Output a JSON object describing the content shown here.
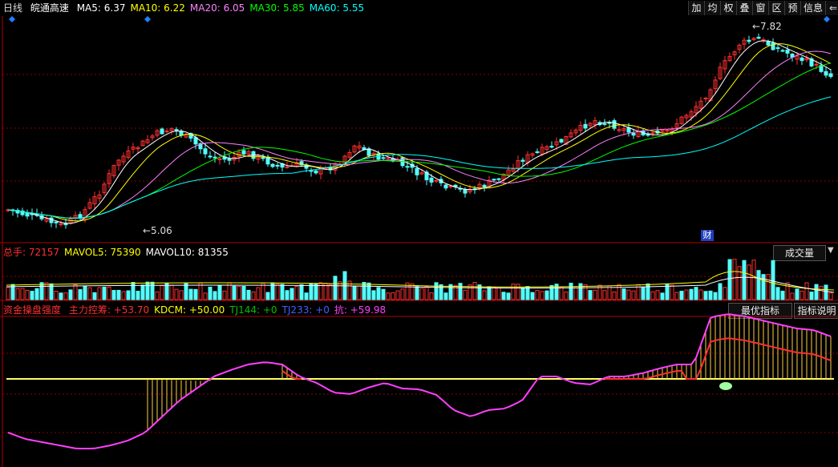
{
  "header": {
    "period": "日线",
    "stock_name": "皖通高速",
    "ma": [
      {
        "label": "MA5:",
        "value": "6.37",
        "color": "#ffffff"
      },
      {
        "label": "MA10:",
        "value": "6.22",
        "color": "#ffff00"
      },
      {
        "label": "MA20:",
        "value": "6.05",
        "color": "#ff80ff"
      },
      {
        "label": "MA30:",
        "value": "5.85",
        "color": "#00ff00"
      },
      {
        "label": "MA60:",
        "value": "5.55",
        "color": "#00ffff"
      }
    ]
  },
  "toolbar": {
    "buttons": [
      "加",
      "均",
      "权",
      "叠",
      "窗",
      "区",
      "预",
      "信息"
    ],
    "back_icon": "back-arrow-icon",
    "dropdown_icon": "chevron-down-icon"
  },
  "price_panel": {
    "high_label": "7.82",
    "low_label": "5.06",
    "finance_marker": "财"
  },
  "volume_panel": {
    "items": [
      {
        "label": "总手:",
        "value": "72157",
        "color": "#ff3030"
      },
      {
        "label": "MAVOL5:",
        "value": "75390",
        "color": "#ffff00"
      },
      {
        "label": "MAVOL10:",
        "value": "81355",
        "color": "#ffffff"
      }
    ],
    "button": "成交量"
  },
  "indicator_panel": {
    "title": "资金操盘强度",
    "items": [
      {
        "label": "主力控筹:",
        "value": "+53.70",
        "color": "#ff3030"
      },
      {
        "label": "KDCM:",
        "value": "+50.00",
        "color": "#ffff00"
      },
      {
        "label": "TJ144:",
        "value": "+0",
        "color": "#00c000"
      },
      {
        "label": "TJ233:",
        "value": "+0",
        "color": "#4060ff"
      },
      {
        "label": "抗:",
        "value": "+59.98",
        "color": "#ff40ff"
      }
    ],
    "buttons": [
      "最优指标",
      "指标说明"
    ]
  },
  "colors": {
    "up": "#ff3030",
    "down": "#54ffff",
    "grid": "#8b0000",
    "ma5": "#ffffff",
    "ma10": "#ffff00",
    "ma20": "#ff80ff",
    "ma30": "#00ff00",
    "ma60": "#00ffff"
  }
}
